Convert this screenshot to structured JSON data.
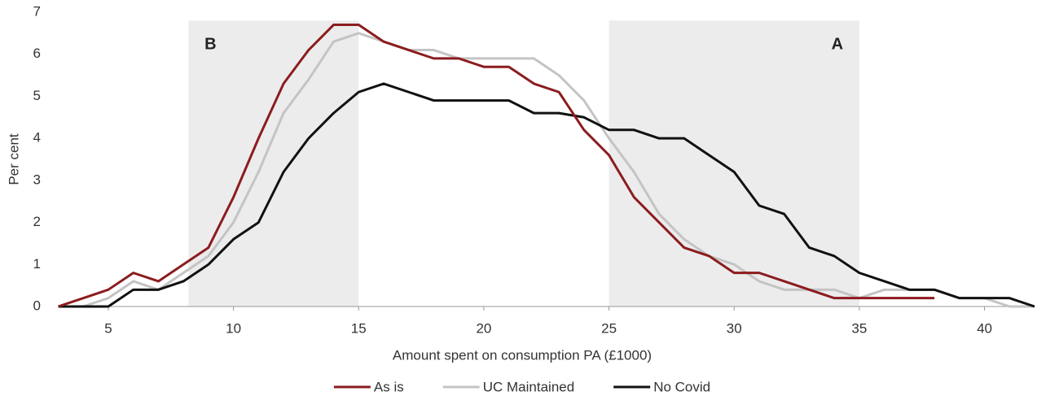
{
  "chart_data": {
    "type": "line",
    "x_label": "Amount spent on consumption PA (£1000)",
    "y_label": "Per cent",
    "x": [
      3,
      4,
      5,
      6,
      7,
      8,
      9,
      10,
      11,
      12,
      13,
      14,
      15,
      16,
      17,
      18,
      19,
      20,
      21,
      22,
      23,
      24,
      25,
      26,
      27,
      28,
      29,
      30,
      31,
      32,
      33,
      34,
      35,
      36,
      37,
      38,
      39,
      40,
      41,
      42
    ],
    "series": [
      {
        "name": "UC Maintained",
        "color": "#c4c4c4",
        "values": [
          0,
          0,
          0.2,
          0.6,
          0.4,
          0.8,
          1.2,
          2.0,
          3.2,
          4.6,
          5.4,
          6.3,
          6.5,
          6.3,
          6.1,
          6.1,
          5.9,
          5.9,
          5.9,
          5.9,
          5.5,
          4.9,
          4.0,
          3.2,
          2.2,
          1.6,
          1.2,
          1.0,
          0.6,
          0.4,
          0.4,
          0.4,
          0.2,
          0.4,
          0.4,
          0.4,
          0.2,
          0.2,
          0,
          0
        ]
      },
      {
        "name": "No Covid",
        "color": "#111111",
        "values": [
          0,
          0,
          0,
          0.4,
          0.4,
          0.6,
          1.0,
          1.6,
          2.0,
          3.2,
          4.0,
          4.6,
          5.1,
          5.3,
          5.1,
          4.9,
          4.9,
          4.9,
          4.9,
          4.6,
          4.6,
          4.5,
          4.2,
          4.2,
          4.0,
          4.0,
          3.6,
          3.2,
          2.4,
          2.2,
          1.4,
          1.2,
          0.8,
          0.6,
          0.4,
          0.4,
          0.2,
          0.2,
          0.2,
          0
        ]
      },
      {
        "name": "As is",
        "color": "#8b1c1f",
        "values": [
          0,
          0.2,
          0.4,
          0.8,
          0.6,
          1.0,
          1.4,
          2.6,
          4.0,
          5.3,
          6.1,
          6.7,
          6.7,
          6.3,
          6.1,
          5.9,
          5.9,
          5.7,
          5.7,
          5.3,
          5.1,
          4.2,
          3.6,
          2.6,
          2.0,
          1.4,
          1.2,
          0.8,
          0.8,
          0.6,
          0.4,
          0.2,
          0.2,
          0.2,
          0.2,
          0.2,
          null,
          null,
          null,
          null
        ]
      }
    ],
    "legend_order": [
      2,
      0,
      1
    ],
    "shaded_regions": [
      {
        "label": "B",
        "x": [
          8.2,
          15
        ],
        "y": [
          0,
          6.8
        ]
      },
      {
        "label": "A",
        "x": [
          25,
          35
        ],
        "y": [
          0,
          6.8
        ]
      }
    ],
    "shade_color": "#ececec",
    "xlim": [
      3,
      42
    ],
    "ylim": [
      0,
      7
    ],
    "xticks": [
      5,
      10,
      15,
      20,
      25,
      30,
      35,
      40
    ],
    "yticks": [
      0,
      1,
      2,
      3,
      4,
      5,
      6,
      7
    ],
    "legend": "bottom"
  }
}
